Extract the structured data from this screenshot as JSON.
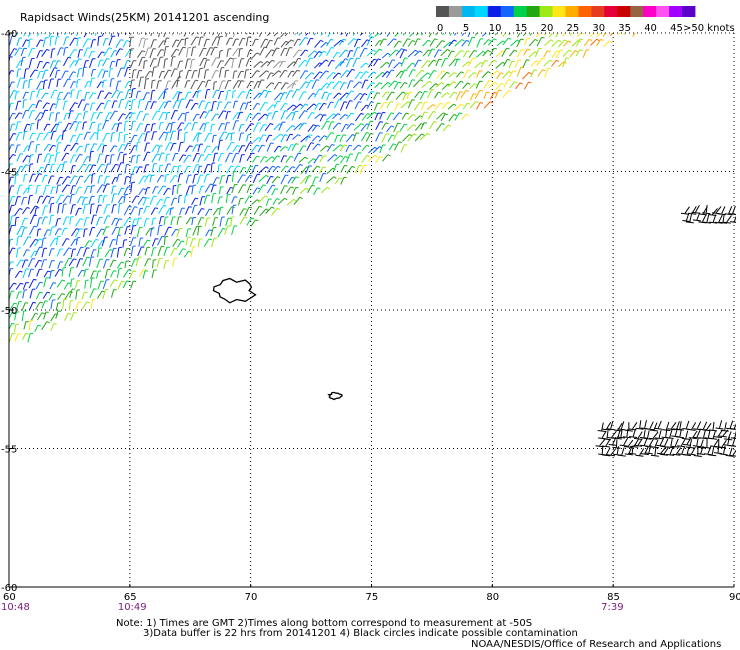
{
  "title": "Rapidsact Winds(25KM) 20141201 ascending",
  "colorbar": {
    "bins": [
      {
        "label": "0",
        "color": "#555555"
      },
      {
        "label": "",
        "color": "#9a9a9a"
      },
      {
        "label": "5",
        "color": "#00b7f0"
      },
      {
        "label": "",
        "color": "#00d8ff"
      },
      {
        "label": "10",
        "color": "#0a1ee8"
      },
      {
        "label": "",
        "color": "#1464ff"
      },
      {
        "label": "15",
        "color": "#00d24a"
      },
      {
        "label": "",
        "color": "#22a815"
      },
      {
        "label": "20",
        "color": "#9ee815"
      },
      {
        "label": "",
        "color": "#ffe61a"
      },
      {
        "label": "25",
        "color": "#ffae00"
      },
      {
        "label": "",
        "color": "#ff6400"
      },
      {
        "label": "30",
        "color": "#e63c1e"
      },
      {
        "label": "",
        "color": "#e6003a"
      },
      {
        "label": "35",
        "color": "#c80000"
      },
      {
        "label": "",
        "color": "#966440"
      },
      {
        "label": "40",
        "color": "#ff00c8"
      },
      {
        "label": "",
        "color": "#ff50f0"
      },
      {
        "label": "45",
        "color": "#9f00ff"
      },
      {
        "label": "",
        "color": "#5a00c8"
      }
    ],
    "end_label": ">50 knots"
  },
  "chart_data": {
    "type": "wind_barb_map",
    "title": "Rapidsact Winds(25KM) 20141201 ascending",
    "xlabel": "",
    "ylabel": "",
    "x_ticks": [
      "60",
      "65",
      "70",
      "75",
      "80",
      "85",
      "90"
    ],
    "y_ticks": [
      "-40",
      "-45",
      "-50",
      "-55",
      "-60"
    ],
    "xlim": [
      60,
      90
    ],
    "ylim": [
      -60,
      -40
    ],
    "grid": "dotted",
    "time_labels": [
      {
        "lon": 60,
        "text": "10:48"
      },
      {
        "lon": 65,
        "text": "10:49"
      },
      {
        "lon": 85,
        "text": "7:39"
      }
    ],
    "islands": [
      {
        "name": "",
        "lon": 69.3,
        "lat": -49.3
      },
      {
        "name": "",
        "lon": 73.5,
        "lat": -53.1
      }
    ],
    "swaths": [
      {
        "region": "main swath",
        "lon_range": [
          60,
          86
        ],
        "lat_range": [
          -51.5,
          -40
        ],
        "speed_knots_range": [
          0,
          35
        ]
      },
      {
        "region": "east fragment",
        "lon_range": [
          84.5,
          90
        ],
        "lat_range": [
          -55.3,
          -54.3
        ],
        "speed_knots_range": [
          0,
          5
        ]
      },
      {
        "region": "east fragment",
        "lon_range": [
          88,
          90
        ],
        "lat_range": [
          -47,
          -46.5
        ],
        "speed_knots_range": [
          0,
          5
        ]
      }
    ]
  },
  "notes": {
    "line1": "Note: 1) Times are GMT 2)Times along bottom correspond to measurement at -50S",
    "line2": "3)Data buffer is 22 hrs from 20141201 4) Black circles indicate possible contamination",
    "credit": "NOAA/NESDIS/Office of Research and Applications"
  }
}
